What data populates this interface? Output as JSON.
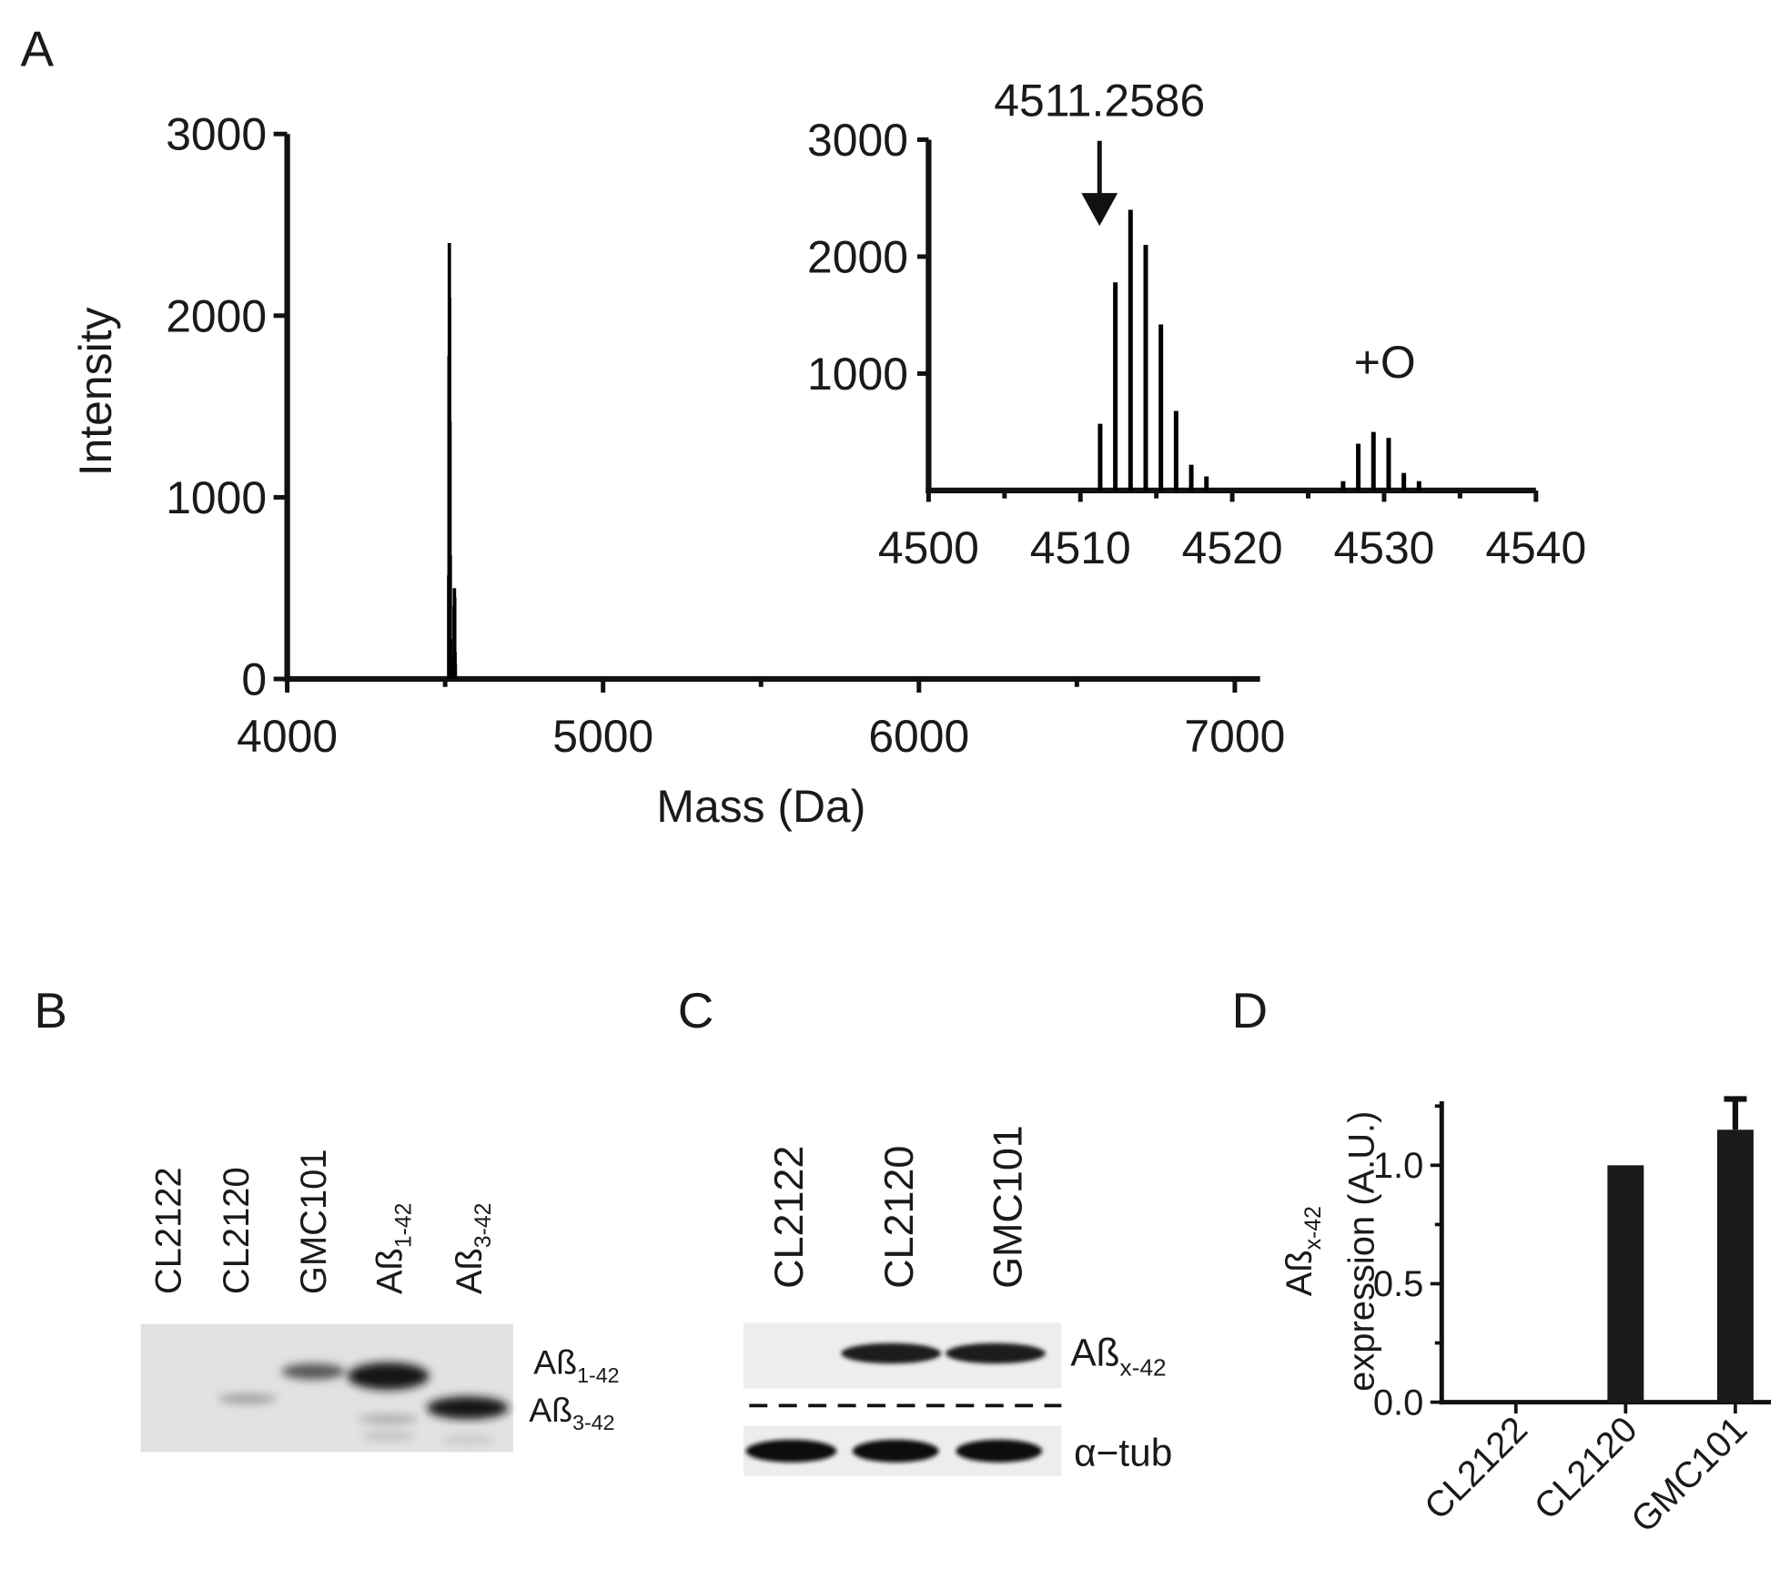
{
  "panel_labels": [
    "A",
    "B",
    "C",
    "D"
  ],
  "chart_data": [
    {
      "type": "spectrum",
      "xlabel": "Mass (Da)",
      "ylabel": "Intensity",
      "x": [
        4511.3,
        4512.3,
        4513.3,
        4514.3,
        4515.3,
        4516.3,
        4517.3,
        4518.3,
        4527.3,
        4528.3,
        4529.3,
        4530.3,
        4531.3,
        4532.3
      ],
      "values": [
        570,
        1780,
        2400,
        2100,
        1420,
        680,
        220,
        120,
        80,
        400,
        500,
        450,
        150,
        80
      ],
      "xlim": [
        4000,
        7080
      ],
      "xticks": [
        4000,
        5000,
        6000,
        7000
      ],
      "minor_xticks": [
        4500,
        5500,
        6500
      ],
      "ylim": [
        0,
        3000
      ],
      "yticks": [
        0,
        1000,
        2000,
        3000
      ],
      "color": "#000000"
    },
    {
      "type": "spectrum",
      "x": [
        4511.3,
        4512.3,
        4513.3,
        4514.3,
        4515.3,
        4516.3,
        4517.3,
        4518.3,
        4527.3,
        4528.3,
        4529.3,
        4530.3,
        4531.3,
        4532.3
      ],
      "values": [
        570,
        1780,
        2400,
        2100,
        1420,
        680,
        220,
        120,
        80,
        400,
        500,
        450,
        150,
        80
      ],
      "xlim": [
        4500,
        4540
      ],
      "xticks": [
        4500,
        4510,
        4520,
        4530,
        4540
      ],
      "minor_xticks": [
        4505,
        4515,
        4525,
        4535
      ],
      "ylim": [
        0,
        3000
      ],
      "yticks": [
        1000,
        2000,
        3000
      ],
      "color": "#000000",
      "annotations": [
        "4511.2586",
        "+O"
      ]
    },
    {
      "type": "bar",
      "categories": [
        "CL2122",
        "CL2120",
        "GMC101"
      ],
      "values": [
        0,
        1.0,
        1.15
      ],
      "errors": [
        0,
        0,
        0.13
      ],
      "ylim": [
        0,
        1.27
      ],
      "yticks": [
        {
          "value": 0,
          "label": "0.0"
        },
        {
          "value": 0.5,
          "label": "0.5"
        },
        {
          "value": 1,
          "label": "1.0"
        }
      ],
      "minor_yticks": [
        0.25,
        0.75,
        1.25
      ],
      "ylabel": {
        "base": "Aß",
        "sub": "x-42"
      },
      "ylabel2": "expression (A.U.)",
      "color": "#1a1a1a"
    }
  ],
  "blot_b": {
    "lanes": [
      "CL2122",
      "CL2120",
      "GMC101",
      {
        "base": "Aß",
        "sub": "1-42"
      },
      {
        "base": "Aß",
        "sub": "3-42"
      }
    ],
    "bands": [
      {
        "base": "Aß",
        "sub": "1-42"
      },
      {
        "base": "Aß",
        "sub": "3-42"
      }
    ]
  },
  "blot_c": {
    "lanes": [
      "CL2122",
      "CL2120",
      "GMC101"
    ],
    "bands": [
      {
        "base": "Aß",
        "sub": "x-42"
      },
      "α−tub"
    ]
  }
}
